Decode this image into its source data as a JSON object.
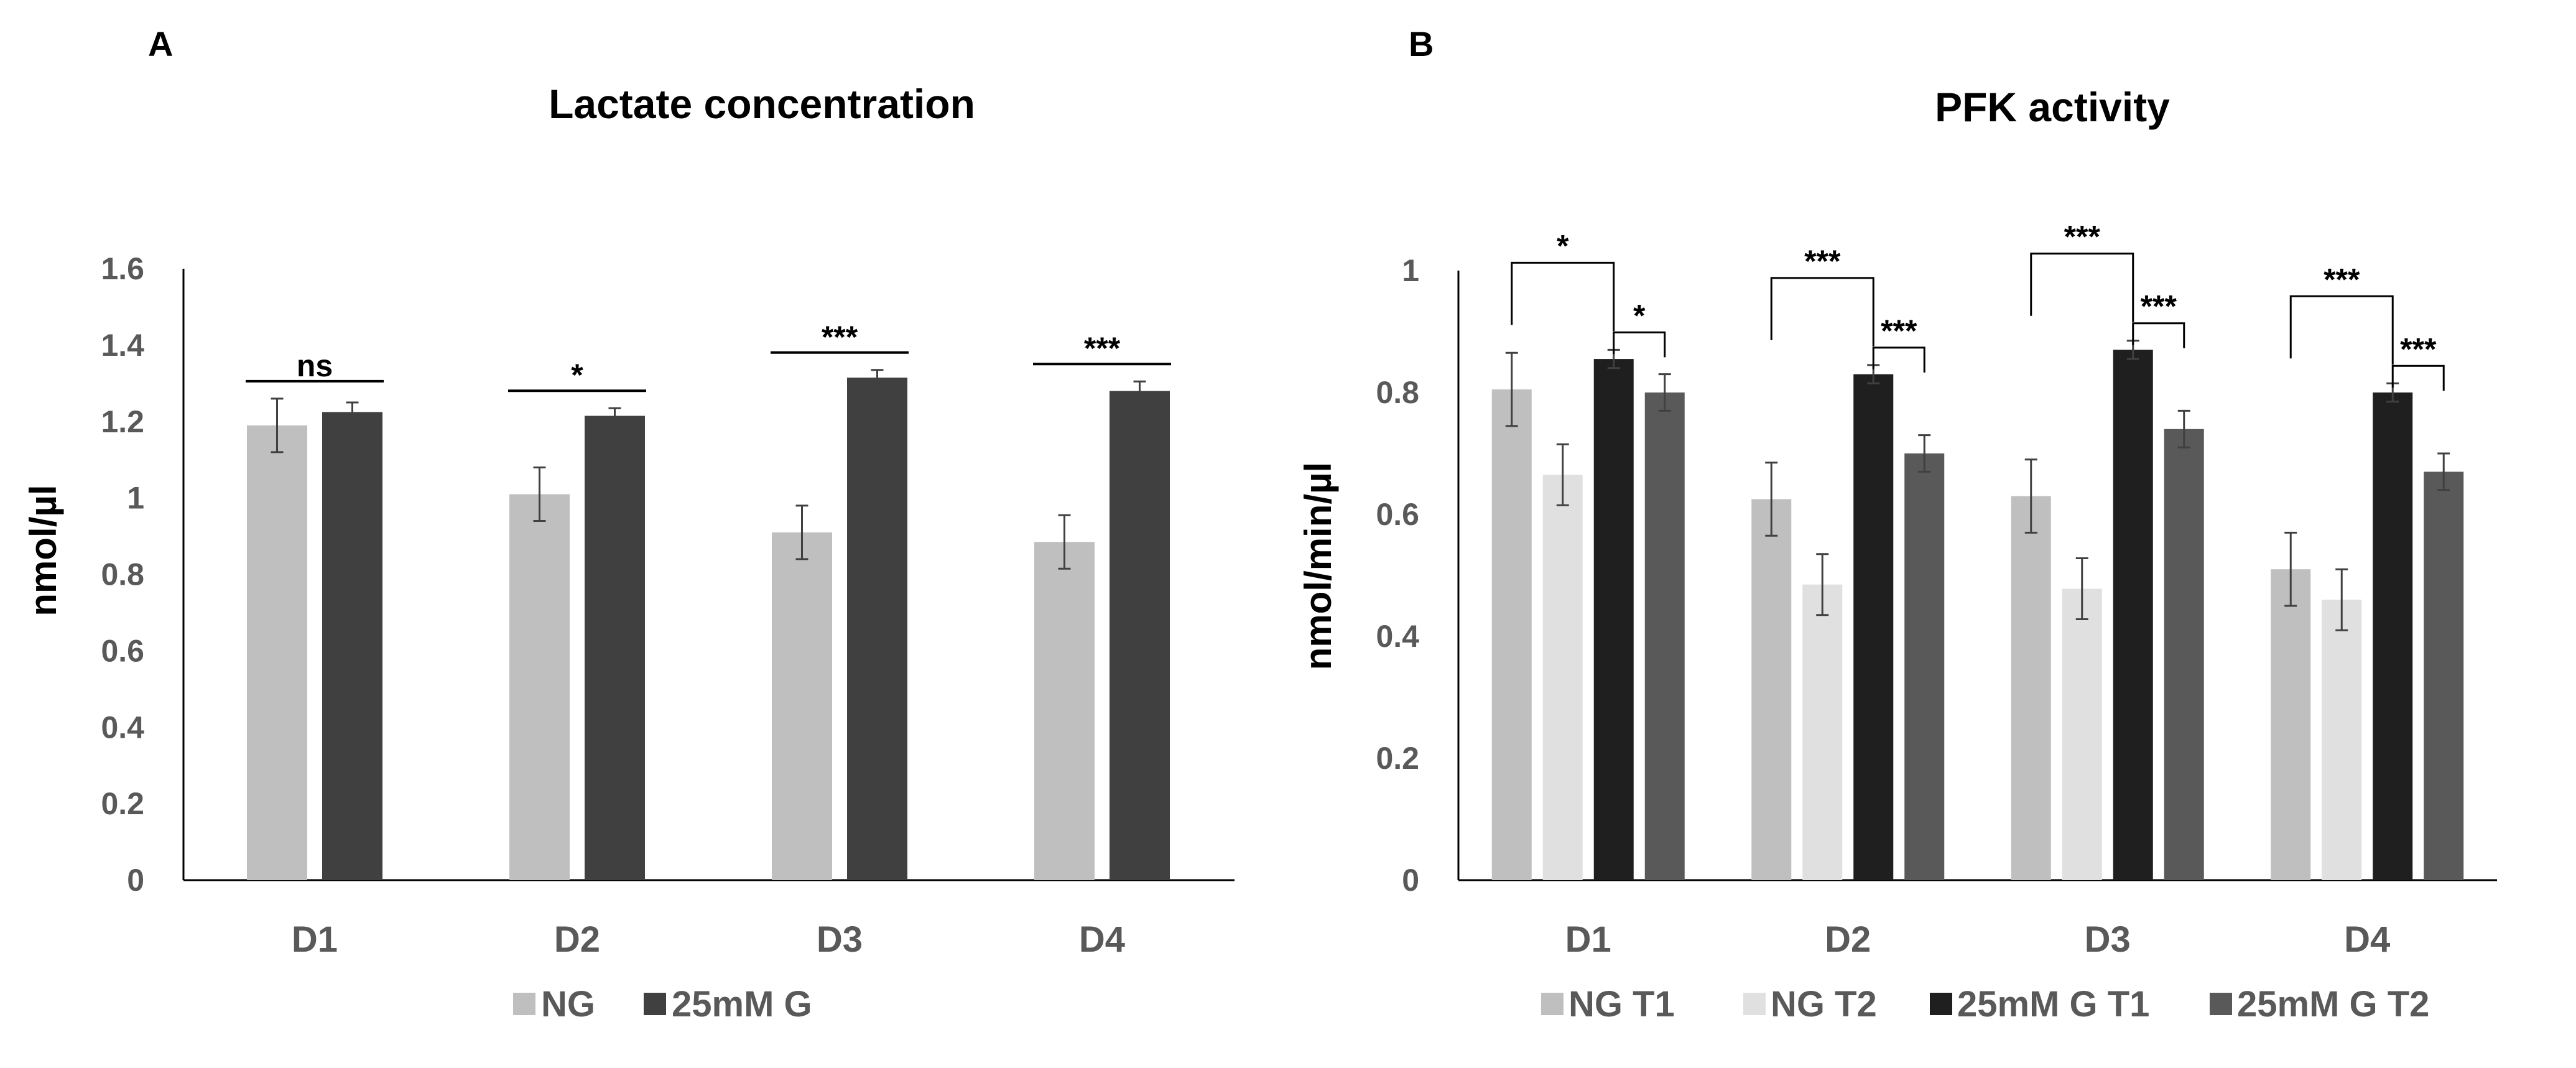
{
  "chart_data": [
    {
      "panel": "A",
      "type": "bar",
      "title": "Lactate concentration",
      "xlabel": "",
      "ylabel": "nmol/µl",
      "ylim": [
        0,
        1.6
      ],
      "yticks": [
        "0",
        "0.2",
        "0.4",
        "0.6",
        "0.8",
        "1",
        "1.2",
        "1.4",
        "1.6"
      ],
      "categories": [
        "D1",
        "D2",
        "D3",
        "D4"
      ],
      "series": [
        {
          "name": "NG",
          "color": "#BFBFBF",
          "values": [
            1.19,
            1.01,
            0.91,
            0.885
          ],
          "errors": [
            0.07,
            0.07,
            0.07,
            0.07
          ]
        },
        {
          "name": "25mM G",
          "color": "#404040",
          "values": [
            1.225,
            1.215,
            1.315,
            1.28
          ],
          "errors": [
            0.025,
            0.02,
            0.02,
            0.025
          ]
        }
      ],
      "significance": [
        {
          "category": 0,
          "from": 0,
          "to": 1,
          "label": "ns"
        },
        {
          "category": 1,
          "from": 0,
          "to": 1,
          "label": "*"
        },
        {
          "category": 2,
          "from": 0,
          "to": 1,
          "label": "***"
        },
        {
          "category": 3,
          "from": 0,
          "to": 1,
          "label": "***"
        }
      ],
      "legend_position": "bottom"
    },
    {
      "panel": "B",
      "type": "bar",
      "title": "PFK activity",
      "xlabel": "",
      "ylabel": "nmol/min/µl",
      "ylim": [
        0,
        1
      ],
      "yticks": [
        "0",
        "0.2",
        "0.4",
        "0.6",
        "0.8",
        "1"
      ],
      "categories": [
        "D1",
        "D2",
        "D3",
        "D4"
      ],
      "series": [
        {
          "name": "NG T1",
          "color": "#BFBFBF",
          "values": [
            0.805,
            0.625,
            0.63,
            0.51
          ],
          "errors": [
            0.06,
            0.06,
            0.06,
            0.06
          ]
        },
        {
          "name": "NG T2",
          "color": "#E0E0E0",
          "values": [
            0.665,
            0.485,
            0.478,
            0.46
          ],
          "errors": [
            0.05,
            0.05,
            0.05,
            0.05
          ]
        },
        {
          "name": "25mM G T1",
          "color": "#1F1F1F",
          "values": [
            0.855,
            0.83,
            0.87,
            0.8
          ],
          "errors": [
            0.015,
            0.015,
            0.015,
            0.015
          ]
        },
        {
          "name": "25mM G T2",
          "color": "#595959",
          "values": [
            0.8,
            0.7,
            0.74,
            0.67
          ],
          "errors": [
            0.03,
            0.03,
            0.03,
            0.03
          ]
        }
      ],
      "significance": [
        {
          "category": 0,
          "from": 0,
          "to": 2,
          "label": "*",
          "level": 2
        },
        {
          "category": 0,
          "from": 2,
          "to": 3,
          "label": "*",
          "level": 1
        },
        {
          "category": 1,
          "from": 0,
          "to": 2,
          "label": "***",
          "level": 2
        },
        {
          "category": 1,
          "from": 2,
          "to": 3,
          "label": "***",
          "level": 1
        },
        {
          "category": 2,
          "from": 0,
          "to": 2,
          "label": "***",
          "level": 2
        },
        {
          "category": 2,
          "from": 2,
          "to": 3,
          "label": "***",
          "level": 1
        },
        {
          "category": 3,
          "from": 0,
          "to": 2,
          "label": "***",
          "level": 2
        },
        {
          "category": 3,
          "from": 2,
          "to": 3,
          "label": "***",
          "level": 1
        }
      ],
      "legend_position": "bottom"
    }
  ]
}
